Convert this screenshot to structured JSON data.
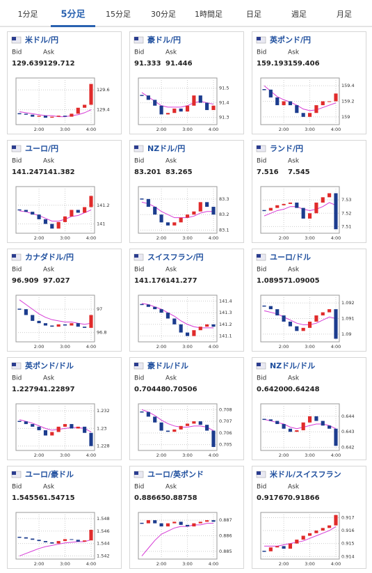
{
  "tabs": [
    "1分足",
    "5分足",
    "15分足",
    "30分足",
    "1時間足",
    "日足",
    "週足",
    "月足"
  ],
  "selected_tab": 1,
  "labels": {
    "bid": "Bid",
    "ask": "Ask"
  },
  "colors": {
    "up": "#e02b2b",
    "down": "#1c3c8e",
    "ma": "#d63bd6",
    "title": "#1f4f9e",
    "accent": "#2a62b0"
  },
  "cards": [
    {
      "title": "米ドル/円",
      "bid": "129.639",
      "ask": "129.712",
      "chart": {
        "type": "candlestick",
        "ylim": [
          129.25,
          129.72
        ],
        "yticks": [
          129.6,
          129.4
        ],
        "xticks": [
          {
            "value": 3,
            "label": "2:00"
          },
          {
            "value": 7,
            "label": "3:00"
          },
          {
            "value": 11,
            "label": "4:00"
          }
        ],
        "closes": [
          129.36,
          129.35,
          129.33,
          129.34,
          129.32,
          129.33,
          129.34,
          129.33,
          129.36,
          129.42,
          129.45,
          129.66
        ],
        "ma": [
          129.38,
          129.37,
          129.36,
          129.35,
          129.34,
          129.34,
          129.33,
          129.33,
          129.34,
          129.35,
          129.37,
          129.4
        ]
      }
    },
    {
      "title": "豪ドル/円",
      "bid": "91.333",
      "ask": "91.446",
      "chart": {
        "type": "candlestick",
        "ylim": [
          91.25,
          91.57
        ],
        "yticks": [
          91.5,
          91.4,
          91.3
        ],
        "xticks": [
          {
            "value": 3,
            "label": "2:00"
          },
          {
            "value": 7,
            "label": "3:00"
          },
          {
            "value": 11,
            "label": "4:00"
          }
        ],
        "closes": [
          91.45,
          91.42,
          91.38,
          91.32,
          91.33,
          91.36,
          91.34,
          91.38,
          91.45,
          91.4,
          91.35,
          91.38
        ],
        "ma": [
          91.47,
          91.44,
          91.41,
          91.38,
          91.37,
          91.37,
          91.37,
          91.38,
          91.4,
          91.41,
          91.4,
          91.39
        ]
      }
    },
    {
      "title": "英ポンド/円",
      "bid": "159.193",
      "ask": "159.406",
      "chart": {
        "type": "candlestick",
        "ylim": [
          158.9,
          159.5
        ],
        "yticks": [
          159.4,
          159.2,
          159
        ],
        "xticks": [
          {
            "value": 3,
            "label": "2:00"
          },
          {
            "value": 7,
            "label": "3:00"
          },
          {
            "value": 11,
            "label": "4:00"
          }
        ],
        "closes": [
          159.35,
          159.25,
          159.15,
          159.2,
          159.15,
          159.05,
          159.0,
          159.05,
          159.15,
          159.2,
          159.2,
          159.3
        ],
        "ma": [
          159.4,
          159.33,
          159.26,
          159.22,
          159.19,
          159.15,
          159.1,
          159.08,
          159.09,
          159.12,
          159.15,
          159.18
        ]
      }
    },
    {
      "title": "ユーロ/円",
      "bid": "141.247",
      "ask": "141.382",
      "chart": {
        "type": "candlestick",
        "ylim": [
          140.9,
          141.4
        ],
        "yticks": [
          141.2,
          141
        ],
        "xticks": [
          {
            "value": 3,
            "label": "2:00"
          },
          {
            "value": 7,
            "label": "3:00"
          },
          {
            "value": 11,
            "label": "4:00"
          }
        ],
        "closes": [
          141.15,
          141.13,
          141.1,
          141.05,
          141.0,
          140.95,
          141.02,
          141.08,
          141.15,
          141.12,
          141.18,
          141.3
        ],
        "ma": [
          141.14,
          141.13,
          141.11,
          141.09,
          141.06,
          141.03,
          141.03,
          141.05,
          141.08,
          141.09,
          141.12,
          141.15
        ]
      }
    },
    {
      "title": "NZドル/円",
      "bid": "83.201",
      "ask": "83.265",
      "chart": {
        "type": "candlestick",
        "ylim": [
          83.08,
          83.38
        ],
        "yticks": [
          83.3,
          83.2,
          83.1
        ],
        "xticks": [
          {
            "value": 3,
            "label": "2:00"
          },
          {
            "value": 7,
            "label": "3:00"
          },
          {
            "value": 11,
            "label": "4:00"
          }
        ],
        "closes": [
          83.3,
          83.25,
          83.2,
          83.15,
          83.13,
          83.15,
          83.18,
          83.2,
          83.22,
          83.28,
          83.25,
          83.2
        ],
        "ma": [
          83.28,
          83.27,
          83.25,
          83.22,
          83.2,
          83.18,
          83.18,
          83.18,
          83.19,
          83.21,
          83.22,
          83.22
        ]
      }
    },
    {
      "title": "ランド/円",
      "bid": "7.516",
      "ask": "7.545",
      "chart": {
        "type": "candlestick",
        "ylim": [
          7.505,
          7.54
        ],
        "yticks": [
          7.53,
          7.52,
          7.51
        ],
        "xticks": [
          {
            "value": 3,
            "label": "2:00"
          },
          {
            "value": 7,
            "label": "3:00"
          },
          {
            "value": 11,
            "label": "4:00"
          }
        ],
        "closes": [
          7.522,
          7.524,
          7.526,
          7.527,
          7.528,
          7.524,
          7.516,
          7.52,
          7.528,
          7.532,
          7.535,
          7.508
        ],
        "ma": [
          7.518,
          7.52,
          7.522,
          7.523,
          7.525,
          7.525,
          7.523,
          7.522,
          7.523,
          7.525,
          7.528,
          7.526
        ]
      }
    },
    {
      "title": "カナダドル/円",
      "bid": "96.909",
      "ask": "97.027",
      "chart": {
        "type": "candlestick",
        "ylim": [
          96.72,
          97.12
        ],
        "yticks": [
          97,
          96.8
        ],
        "xticks": [
          {
            "value": 3,
            "label": "2:00"
          },
          {
            "value": 7,
            "label": "3:00"
          },
          {
            "value": 11,
            "label": "4:00"
          }
        ],
        "closes": [
          97.0,
          96.95,
          96.9,
          96.88,
          96.86,
          96.85,
          96.87,
          96.86,
          96.88,
          96.85,
          96.84,
          96.95
        ],
        "ma": [
          97.08,
          97.04,
          97.0,
          96.96,
          96.93,
          96.91,
          96.9,
          96.89,
          96.89,
          96.88,
          96.87,
          96.88
        ]
      }
    },
    {
      "title": "スイスフラン/円",
      "bid": "141.176",
      "ask": "141.277",
      "chart": {
        "type": "candlestick",
        "ylim": [
          141.05,
          141.45
        ],
        "yticks": [
          141.4,
          141.3,
          141.2,
          141.1
        ],
        "xticks": [
          {
            "value": 3,
            "label": "2:00"
          },
          {
            "value": 7,
            "label": "3:00"
          },
          {
            "value": 11,
            "label": "4:00"
          }
        ],
        "closes": [
          141.37,
          141.35,
          141.33,
          141.3,
          141.25,
          141.2,
          141.13,
          141.1,
          141.15,
          141.18,
          141.2,
          141.18
        ],
        "ma": [
          141.38,
          141.37,
          141.35,
          141.33,
          141.3,
          141.27,
          141.23,
          141.2,
          141.18,
          141.17,
          141.17,
          141.17
        ]
      }
    },
    {
      "title": "ユーロ/ドル",
      "bid": "1.08957",
      "ask": "1.09005",
      "chart": {
        "type": "candlestick",
        "ylim": [
          1.0895,
          1.0925
        ],
        "yticks": [
          1.092,
          1.091,
          1.09
        ],
        "xticks": [
          {
            "value": 3,
            "label": "2:00"
          },
          {
            "value": 7,
            "label": "3:00"
          },
          {
            "value": 11,
            "label": "4:00"
          }
        ],
        "closes": [
          1.0918,
          1.0916,
          1.0912,
          1.0908,
          1.0905,
          1.0902,
          1.0904,
          1.0908,
          1.0912,
          1.0914,
          1.0916,
          1.0897
        ],
        "ma": [
          1.0915,
          1.0914,
          1.0913,
          1.0911,
          1.0909,
          1.0907,
          1.0906,
          1.0906,
          1.0907,
          1.0909,
          1.0911,
          1.091
        ]
      }
    },
    {
      "title": "英ポンド/ドル",
      "bid": "1.22794",
      "ask": "1.22897",
      "chart": {
        "type": "candlestick",
        "ylim": [
          1.2275,
          1.2328
        ],
        "yticks": [
          1.232,
          1.23,
          1.228
        ],
        "xticks": [
          {
            "value": 3,
            "label": "2:00"
          },
          {
            "value": 7,
            "label": "3:00"
          },
          {
            "value": 11,
            "label": "4:00"
          }
        ],
        "closes": [
          1.2308,
          1.2305,
          1.2302,
          1.2298,
          1.2292,
          1.2296,
          1.2302,
          1.2305,
          1.23,
          1.2302,
          1.2295,
          1.228
        ],
        "ma": [
          1.231,
          1.2308,
          1.2306,
          1.2303,
          1.23,
          1.2298,
          1.2299,
          1.23,
          1.2301,
          1.2301,
          1.23,
          1.2296
        ]
      }
    },
    {
      "title": "豪ドル/ドル",
      "bid": "0.70448",
      "ask": "0.70506",
      "chart": {
        "type": "candlestick",
        "ylim": [
          0.7045,
          0.7085
        ],
        "yticks": [
          0.708,
          0.707,
          0.706,
          0.705
        ],
        "xticks": [
          {
            "value": 3,
            "label": "2:00"
          },
          {
            "value": 7,
            "label": "3:00"
          },
          {
            "value": 11,
            "label": "4:00"
          }
        ],
        "closes": [
          0.7078,
          0.7074,
          0.7069,
          0.7062,
          0.7061,
          0.7063,
          0.7066,
          0.7068,
          0.707,
          0.7067,
          0.7062,
          0.7048
        ],
        "ma": [
          0.708,
          0.7078,
          0.7075,
          0.7071,
          0.7068,
          0.7066,
          0.7065,
          0.7065,
          0.7066,
          0.7066,
          0.7065,
          0.7062
        ]
      }
    },
    {
      "title": "NZドル/ドル",
      "bid": "0.64200",
      "ask": "0.64248",
      "chart": {
        "type": "candlestick",
        "ylim": [
          0.6418,
          0.6448
        ],
        "yticks": [
          0.644,
          0.643,
          0.642
        ],
        "xticks": [
          {
            "value": 3,
            "label": "2:00"
          },
          {
            "value": 7,
            "label": "3:00"
          },
          {
            "value": 11,
            "label": "4:00"
          }
        ],
        "closes": [
          0.6438,
          0.6437,
          0.6435,
          0.6432,
          0.643,
          0.6431,
          0.6436,
          0.644,
          0.6437,
          0.6434,
          0.6432,
          0.6421
        ],
        "ma": [
          0.6438,
          0.6437,
          0.6436,
          0.6435,
          0.6433,
          0.6432,
          0.6433,
          0.6434,
          0.6435,
          0.6435,
          0.6434,
          0.6432
        ]
      }
    },
    {
      "title": "ユーロ/豪ドル",
      "bid": "1.54556",
      "ask": "1.54715",
      "chart": {
        "type": "candlestick",
        "ylim": [
          1.5415,
          1.549
        ],
        "yticks": [
          1.548,
          1.546,
          1.544,
          1.542
        ],
        "xticks": [
          {
            "value": 3,
            "label": "2:00"
          },
          {
            "value": 7,
            "label": "3:00"
          },
          {
            "value": 11,
            "label": "4:00"
          }
        ],
        "closes": [
          1.545,
          1.5448,
          1.5446,
          1.5444,
          1.5442,
          1.544,
          1.5444,
          1.5447,
          1.5446,
          1.5443,
          1.5445,
          1.5462
        ],
        "ma": [
          1.542,
          1.5424,
          1.5428,
          1.5432,
          1.5435,
          1.5437,
          1.5439,
          1.5441,
          1.5442,
          1.5443,
          1.5443,
          1.5446
        ]
      }
    },
    {
      "title": "ユーロ/英ポンド",
      "bid": "0.88665",
      "ask": "0.88758",
      "chart": {
        "type": "candlestick",
        "ylim": [
          0.8845,
          0.8875
        ],
        "yticks": [
          0.887,
          0.886,
          0.885
        ],
        "xticks": [
          {
            "value": 3,
            "label": "2:00"
          },
          {
            "value": 7,
            "label": "3:00"
          },
          {
            "value": 11,
            "label": "4:00"
          }
        ],
        "closes": [
          0.8868,
          0.887,
          0.8868,
          0.8866,
          0.8868,
          0.8869,
          0.8867,
          0.8866,
          0.8868,
          0.8869,
          0.887,
          0.8869
        ],
        "ma": [
          0.8847,
          0.8852,
          0.8857,
          0.8861,
          0.8863,
          0.8865,
          0.8866,
          0.8866,
          0.8867,
          0.8867,
          0.8868,
          0.8868
        ]
      }
    },
    {
      "title": "米ドル/スイスフラン",
      "bid": "0.91767",
      "ask": "0.91866",
      "chart": {
        "type": "candlestick",
        "ylim": [
          0.9138,
          0.9174
        ],
        "yticks": [
          0.917,
          0.916,
          0.915,
          0.914
        ],
        "xticks": [
          {
            "value": 3,
            "label": "2:00"
          },
          {
            "value": 7,
            "label": "3:00"
          },
          {
            "value": 11,
            "label": "4:00"
          }
        ],
        "closes": [
          0.9144,
          0.9147,
          0.9148,
          0.9146,
          0.915,
          0.9153,
          0.9156,
          0.9158,
          0.916,
          0.9162,
          0.9164,
          0.9172
        ],
        "ma": [
          0.9148,
          0.9148,
          0.9148,
          0.9149,
          0.915,
          0.9151,
          0.9152,
          0.9154,
          0.9156,
          0.9158,
          0.916,
          0.9163
        ]
      }
    }
  ]
}
